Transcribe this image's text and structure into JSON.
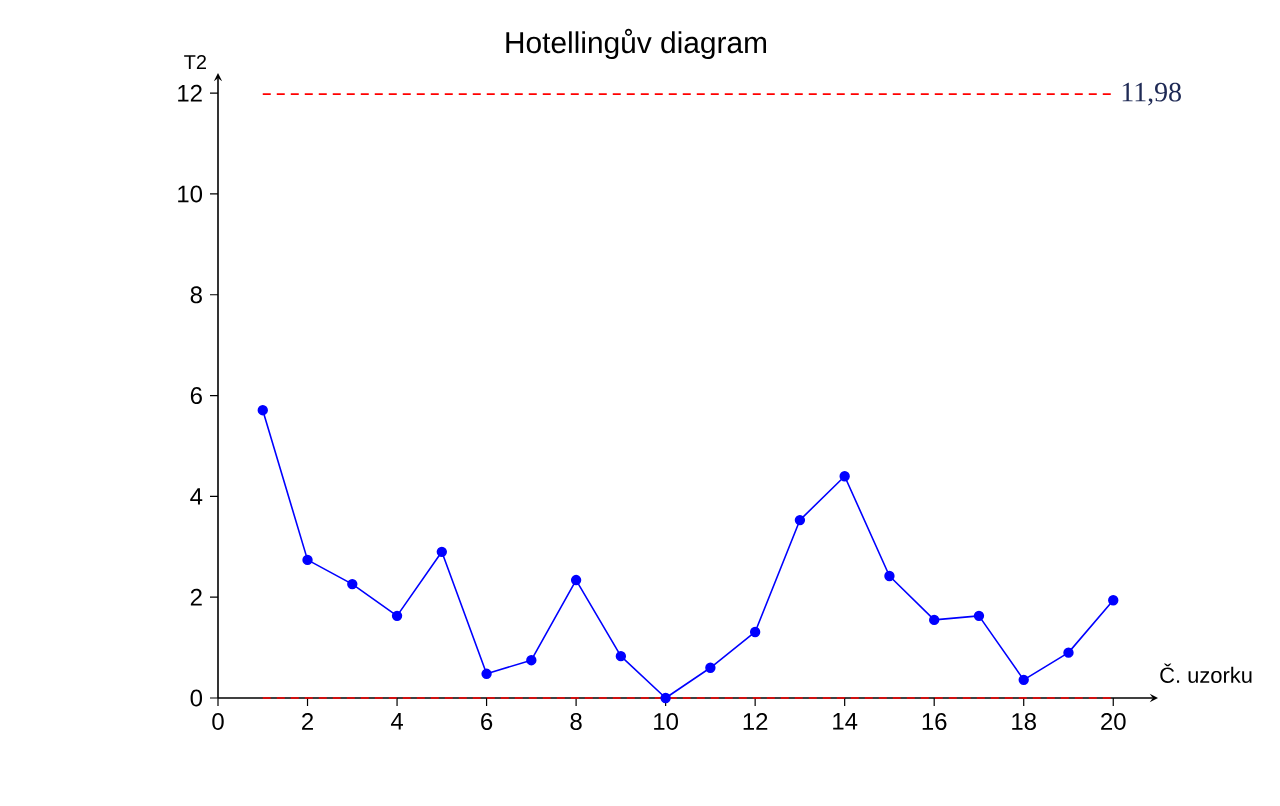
{
  "chart_data": {
    "type": "line",
    "title": "Hotellingův diagram",
    "xlabel": "Č. uzorku",
    "ylabel": "T2",
    "x": [
      1,
      2,
      3,
      4,
      5,
      6,
      7,
      8,
      9,
      10,
      11,
      12,
      13,
      14,
      15,
      16,
      17,
      18,
      19,
      20
    ],
    "series": [
      {
        "color": "#0000ff",
        "values": [
          5.71,
          2.74,
          2.26,
          1.63,
          2.9,
          0.48,
          0.75,
          2.34,
          0.83,
          0.0,
          0.6,
          1.31,
          3.53,
          4.4,
          2.42,
          1.55,
          1.63,
          0.36,
          0.9,
          1.94
        ]
      }
    ],
    "xlim": [
      0,
      21
    ],
    "ylim": [
      0,
      12.4
    ],
    "xticks": [
      0,
      2,
      4,
      6,
      8,
      10,
      12,
      14,
      16,
      18,
      20
    ],
    "yticks": [
      0,
      2,
      4,
      6,
      8,
      10,
      12
    ],
    "ref_lines": [
      {
        "axis": "y",
        "value": 11.98,
        "label": "11,98",
        "color": "#ff0000",
        "line_style": "dashed"
      },
      {
        "axis": "y",
        "value": 0,
        "color": "#ff0000",
        "line_style": "dashed"
      }
    ],
    "marker": "circle",
    "line_style": "solid"
  }
}
